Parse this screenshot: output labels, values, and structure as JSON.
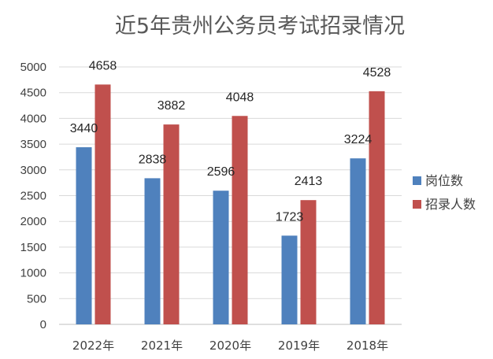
{
  "chart_data": {
    "type": "bar",
    "title": "近5年贵州公务员考试招录情况",
    "categories": [
      "2022年",
      "2021年",
      "2020年",
      "2019年",
      "2018年"
    ],
    "series": [
      {
        "name": "岗位数",
        "color": "#4F81BD",
        "values": [
          3440,
          2838,
          2596,
          1723,
          3224
        ]
      },
      {
        "name": "招录人数",
        "color": "#C0504D",
        "values": [
          4658,
          3882,
          4048,
          2413,
          4528
        ]
      }
    ],
    "ylim": [
      0,
      5000
    ],
    "yticks": [
      0,
      500,
      1000,
      1500,
      2000,
      2500,
      3000,
      3500,
      4000,
      4500,
      5000
    ],
    "xlabel": "",
    "ylabel": "",
    "grid": true,
    "legend": "right"
  }
}
